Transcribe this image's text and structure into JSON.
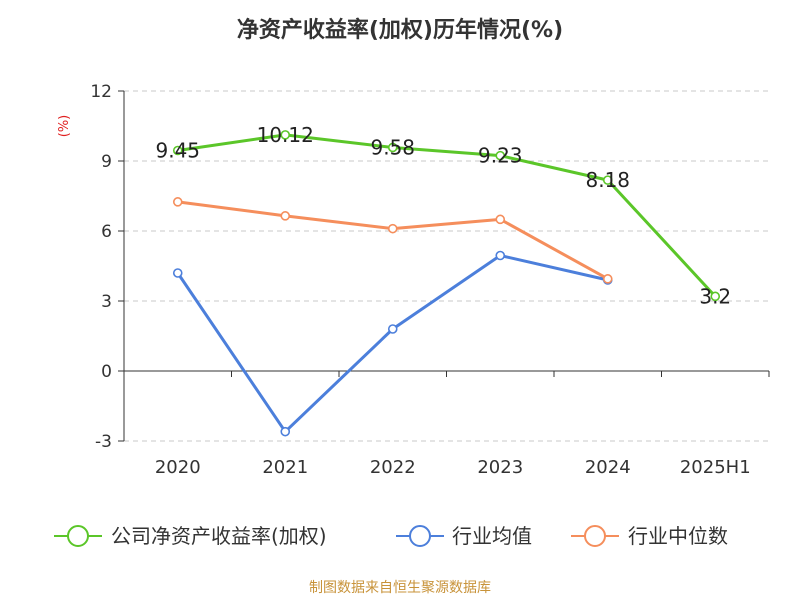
{
  "chart_data": {
    "type": "line",
    "title": "净资产收益率(加权)历年情况(%)",
    "ylabel": "(%)",
    "categories": [
      "2020",
      "2021",
      "2022",
      "2023",
      "2024",
      "2025H1"
    ],
    "ylim": [
      -3,
      12
    ],
    "yticks": [
      -3,
      0,
      3,
      6,
      9,
      12
    ],
    "grid": true,
    "legend_position": "bottom",
    "series": [
      {
        "name": "公司净资产收益率(加权)",
        "color": "#5BC629",
        "values": [
          9.45,
          10.12,
          9.58,
          9.23,
          8.18,
          3.2
        ],
        "labels": [
          "9.45",
          "10.12",
          "9.58",
          "9.23",
          "8.18",
          "3.2"
        ]
      },
      {
        "name": "行业均值",
        "color": "#4C7FDB",
        "values": [
          4.2,
          -2.6,
          1.8,
          4.95,
          3.9,
          null
        ]
      },
      {
        "name": "行业中位数",
        "color": "#F58E5C",
        "values": [
          7.25,
          6.65,
          6.1,
          6.5,
          3.95,
          null
        ]
      }
    ]
  },
  "source": "制图数据来自恒生聚源数据库"
}
